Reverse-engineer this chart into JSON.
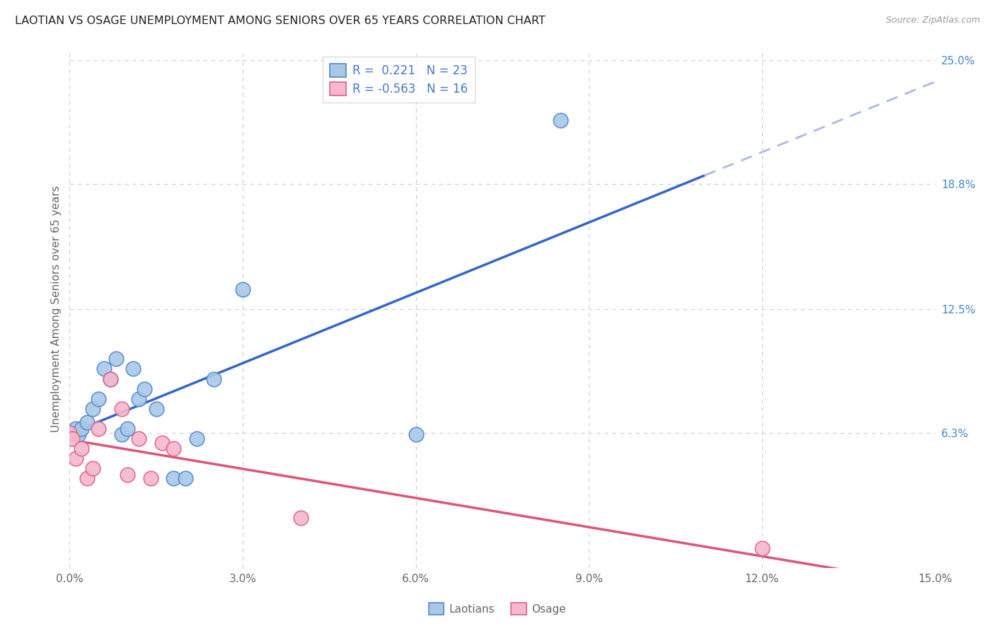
{
  "title": "LAOTIAN VS OSAGE UNEMPLOYMENT AMONG SENIORS OVER 65 YEARS CORRELATION CHART",
  "source": "Source: ZipAtlas.com",
  "ylabel": "Unemployment Among Seniors over 65 years",
  "xlim": [
    0,
    0.15
  ],
  "ylim": [
    -0.005,
    0.255
  ],
  "xticks": [
    0.0,
    0.03,
    0.06,
    0.09,
    0.12,
    0.15
  ],
  "xticklabels": [
    "0.0%",
    "3.0%",
    "6.0%",
    "9.0%",
    "12.0%",
    "15.0%"
  ],
  "yticks_right": [
    0.063,
    0.125,
    0.188,
    0.25
  ],
  "yticks_right_labels": [
    "6.3%",
    "12.5%",
    "18.8%",
    "25.0%"
  ],
  "background_color": "#ffffff",
  "grid_color": "#cccccc",
  "laotian_color": "#a8c8e8",
  "osage_color": "#f5b8cc",
  "laotian_edge_color": "#5588cc",
  "osage_edge_color": "#e06088",
  "laotian_R": 0.221,
  "laotian_N": 23,
  "osage_R": -0.563,
  "osage_N": 16,
  "legend_text_color": "#4477cc",
  "laotian_x": [
    0.0005,
    0.001,
    0.0015,
    0.002,
    0.003,
    0.004,
    0.005,
    0.006,
    0.007,
    0.008,
    0.009,
    0.01,
    0.011,
    0.012,
    0.013,
    0.015,
    0.018,
    0.02,
    0.022,
    0.025,
    0.03,
    0.06,
    0.085
  ],
  "laotian_y": [
    0.063,
    0.065,
    0.062,
    0.065,
    0.068,
    0.075,
    0.08,
    0.095,
    0.09,
    0.1,
    0.062,
    0.065,
    0.095,
    0.08,
    0.085,
    0.075,
    0.04,
    0.04,
    0.06,
    0.09,
    0.135,
    0.062,
    0.22
  ],
  "osage_x": [
    0.0,
    0.0005,
    0.001,
    0.002,
    0.003,
    0.004,
    0.005,
    0.007,
    0.009,
    0.01,
    0.012,
    0.014,
    0.016,
    0.018,
    0.04,
    0.12
  ],
  "osage_y": [
    0.063,
    0.06,
    0.05,
    0.055,
    0.04,
    0.045,
    0.065,
    0.09,
    0.075,
    0.042,
    0.06,
    0.04,
    0.058,
    0.055,
    0.02,
    0.005
  ],
  "title_color": "#333333",
  "axis_color": "#666666",
  "blue_line_start": 0.0,
  "blue_line_solid_end": 0.11,
  "blue_line_dash_end": 0.15,
  "pink_line_start": 0.0,
  "pink_line_end": 0.15
}
